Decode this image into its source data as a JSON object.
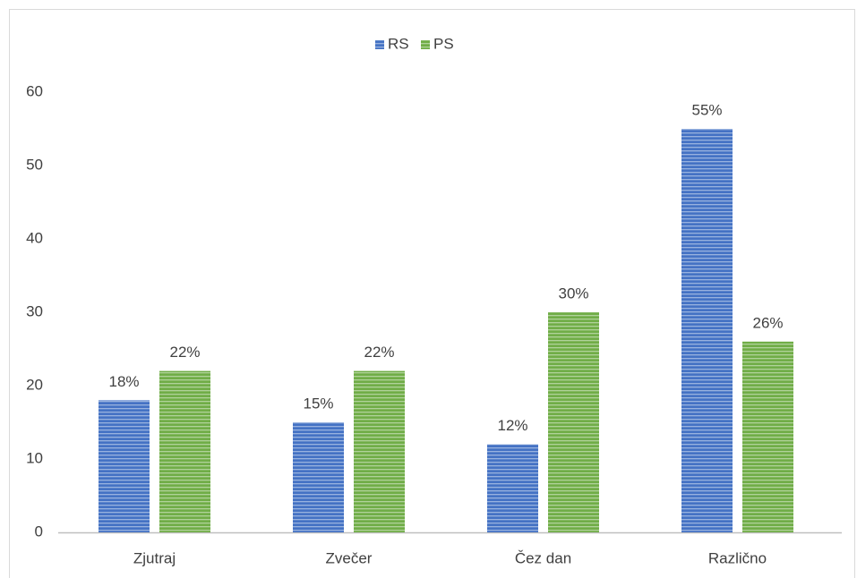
{
  "chart_data": {
    "type": "bar",
    "categories": [
      "Zjutraj",
      "Zvečer",
      "Čez dan",
      "Različno"
    ],
    "series": [
      {
        "name": "RS",
        "color": "#4472c4",
        "values": [
          18,
          15,
          12,
          55
        ],
        "value_labels": [
          "18%",
          "15%",
          "12%",
          "55%"
        ]
      },
      {
        "name": "PS",
        "color": "#70ad47",
        "values": [
          22,
          22,
          30,
          26
        ],
        "value_labels": [
          "22%",
          "22%",
          "30%",
          "26%"
        ]
      }
    ],
    "ylim": [
      0,
      60
    ],
    "yticks": [
      0,
      10,
      20,
      30,
      40,
      50,
      60
    ],
    "grid": false,
    "legend": "top"
  }
}
